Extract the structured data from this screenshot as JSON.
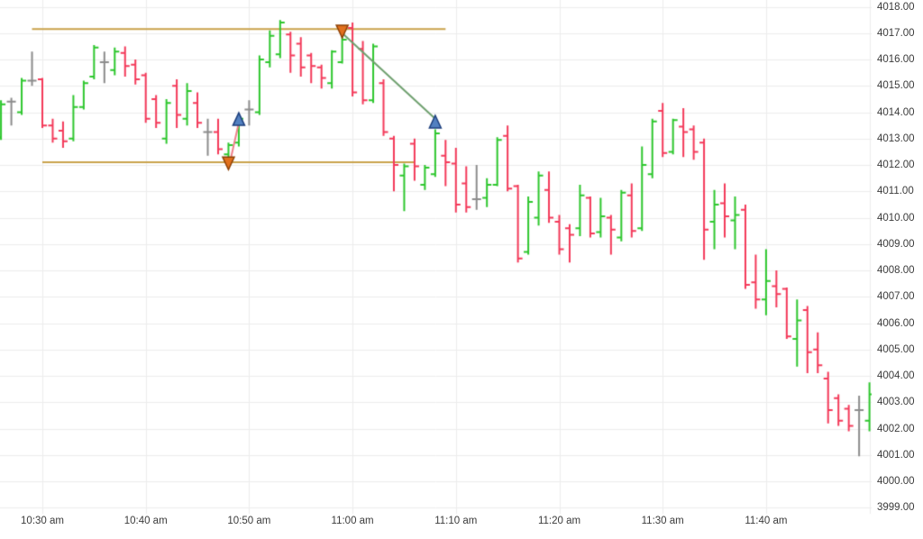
{
  "chart_data": {
    "type": "ohlc",
    "title": "",
    "xlabel": "time",
    "ylabel": "price",
    "ylim": [
      3999,
      4018.6
    ],
    "grid": true,
    "bars": [
      {
        "t": "10:26",
        "o": 4013.05,
        "h": 4014.45,
        "l": 4012.95,
        "c": 4014.3
      },
      {
        "t": "10:27",
        "o": 4014.4,
        "h": 4014.55,
        "l": 4013.5,
        "c": 4014.4
      },
      {
        "t": "10:28",
        "o": 4014.0,
        "h": 4015.3,
        "l": 4013.9,
        "c": 4015.2
      },
      {
        "t": "10:29",
        "o": 4015.2,
        "h": 4016.3,
        "l": 4015.0,
        "c": 4015.2
      },
      {
        "t": "10:30",
        "o": 4015.25,
        "h": 4015.3,
        "l": 4013.4,
        "c": 4013.5
      },
      {
        "t": "10:31",
        "o": 4013.5,
        "h": 4013.75,
        "l": 4012.85,
        "c": 4013.0
      },
      {
        "t": "10:32",
        "o": 4013.3,
        "h": 4013.65,
        "l": 4012.65,
        "c": 4012.9
      },
      {
        "t": "10:33",
        "o": 4013.0,
        "h": 4014.65,
        "l": 4012.9,
        "c": 4014.2
      },
      {
        "t": "10:34",
        "o": 4014.2,
        "h": 4015.2,
        "l": 4014.1,
        "c": 4015.1
      },
      {
        "t": "10:35",
        "o": 4015.35,
        "h": 4016.55,
        "l": 4015.25,
        "c": 4016.45
      },
      {
        "t": "10:36",
        "o": 4015.9,
        "h": 4016.3,
        "l": 4015.1,
        "c": 4015.9
      },
      {
        "t": "10:37",
        "o": 4015.6,
        "h": 4016.45,
        "l": 4015.4,
        "c": 4016.3
      },
      {
        "t": "10:38",
        "o": 4016.25,
        "h": 4016.5,
        "l": 4015.35,
        "c": 4015.75
      },
      {
        "t": "10:39",
        "o": 4015.8,
        "h": 4016.0,
        "l": 4015.05,
        "c": 4015.25
      },
      {
        "t": "10:40",
        "o": 4015.4,
        "h": 4015.5,
        "l": 4013.6,
        "c": 4013.75
      },
      {
        "t": "10:41",
        "o": 4014.5,
        "h": 4014.65,
        "l": 4013.4,
        "c": 4013.6
      },
      {
        "t": "10:42",
        "o": 4013.0,
        "h": 4014.5,
        "l": 4012.8,
        "c": 4014.35
      },
      {
        "t": "10:43",
        "o": 4015.0,
        "h": 4015.25,
        "l": 4013.4,
        "c": 4013.9
      },
      {
        "t": "10:44",
        "o": 4013.75,
        "h": 4015.1,
        "l": 4013.5,
        "c": 4014.8
      },
      {
        "t": "10:45",
        "o": 4014.35,
        "h": 4014.75,
        "l": 4013.4,
        "c": 4013.6
      },
      {
        "t": "10:46",
        "o": 4013.25,
        "h": 4013.75,
        "l": 4012.35,
        "c": 4013.25
      },
      {
        "t": "10:47",
        "o": 4013.25,
        "h": 4013.75,
        "l": 4012.4,
        "c": 4012.6
      },
      {
        "t": "10:48",
        "o": 4012.4,
        "h": 4012.85,
        "l": 4012.2,
        "c": 4012.75
      },
      {
        "t": "10:49",
        "o": 4012.85,
        "h": 4013.9,
        "l": 4012.7,
        "c": 4013.75
      },
      {
        "t": "10:50",
        "o": 4014.1,
        "h": 4014.45,
        "l": 4013.5,
        "c": 4014.1
      },
      {
        "t": "10:51",
        "o": 4014.0,
        "h": 4016.15,
        "l": 4013.9,
        "c": 4016.0
      },
      {
        "t": "10:52",
        "o": 4015.9,
        "h": 4017.1,
        "l": 4015.7,
        "c": 4016.9
      },
      {
        "t": "10:53",
        "o": 4016.2,
        "h": 4017.5,
        "l": 4016.05,
        "c": 4017.4
      },
      {
        "t": "10:54",
        "o": 4016.95,
        "h": 4017.05,
        "l": 4015.5,
        "c": 4016.15
      },
      {
        "t": "10:55",
        "o": 4016.6,
        "h": 4016.85,
        "l": 4015.35,
        "c": 4015.7
      },
      {
        "t": "10:56",
        "o": 4016.15,
        "h": 4016.25,
        "l": 4015.1,
        "c": 4015.75
      },
      {
        "t": "10:57",
        "o": 4015.7,
        "h": 4015.8,
        "l": 4014.9,
        "c": 4015.3
      },
      {
        "t": "10:58",
        "o": 4015.1,
        "h": 4016.35,
        "l": 4014.9,
        "c": 4016.3
      },
      {
        "t": "10:59",
        "o": 4015.9,
        "h": 4016.9,
        "l": 4015.85,
        "c": 4016.75
      },
      {
        "t": "11:00",
        "o": 4017.2,
        "h": 4017.4,
        "l": 4014.6,
        "c": 4014.75
      },
      {
        "t": "11:01",
        "o": 4016.4,
        "h": 4016.7,
        "l": 4014.3,
        "c": 4014.45
      },
      {
        "t": "11:02",
        "o": 4014.45,
        "h": 4016.6,
        "l": 4014.35,
        "c": 4016.5
      },
      {
        "t": "11:03",
        "o": 4015.1,
        "h": 4015.25,
        "l": 4013.1,
        "c": 4013.25
      },
      {
        "t": "11:04",
        "o": 4013.0,
        "h": 4013.1,
        "l": 4011.0,
        "c": 4012.0
      },
      {
        "t": "11:05",
        "o": 4011.6,
        "h": 4012.05,
        "l": 4010.25,
        "c": 4011.95
      },
      {
        "t": "11:06",
        "o": 4012.8,
        "h": 4013.0,
        "l": 4011.4,
        "c": 4011.95
      },
      {
        "t": "11:07",
        "o": 4011.25,
        "h": 4012.0,
        "l": 4011.05,
        "c": 4011.9
      },
      {
        "t": "11:08",
        "o": 4011.65,
        "h": 4013.35,
        "l": 4011.55,
        "c": 4013.2
      },
      {
        "t": "11:09",
        "o": 4012.35,
        "h": 4012.95,
        "l": 4011.2,
        "c": 4012.1
      },
      {
        "t": "11:10",
        "o": 4012.05,
        "h": 4012.65,
        "l": 4010.2,
        "c": 4010.5
      },
      {
        "t": "11:11",
        "o": 4011.3,
        "h": 4011.95,
        "l": 4010.2,
        "c": 4010.4
      },
      {
        "t": "11:12",
        "o": 4010.7,
        "h": 4012.0,
        "l": 4010.3,
        "c": 4010.7
      },
      {
        "t": "11:13",
        "o": 4010.75,
        "h": 4011.5,
        "l": 4010.4,
        "c": 4011.25
      },
      {
        "t": "11:14",
        "o": 4011.25,
        "h": 4013.05,
        "l": 4011.2,
        "c": 4012.95
      },
      {
        "t": "11:15",
        "o": 4013.1,
        "h": 4013.5,
        "l": 4011.0,
        "c": 4011.1
      },
      {
        "t": "11:16",
        "o": 4011.2,
        "h": 4011.25,
        "l": 4008.3,
        "c": 4008.45
      },
      {
        "t": "11:17",
        "o": 4008.7,
        "h": 4010.8,
        "l": 4008.6,
        "c": 4010.6
      },
      {
        "t": "11:18",
        "o": 4010.0,
        "h": 4011.75,
        "l": 4009.7,
        "c": 4011.6
      },
      {
        "t": "11:19",
        "o": 4011.05,
        "h": 4011.75,
        "l": 4009.8,
        "c": 4010.0
      },
      {
        "t": "11:20",
        "o": 4009.85,
        "h": 4010.1,
        "l": 4008.6,
        "c": 4008.8
      },
      {
        "t": "11:21",
        "o": 4009.6,
        "h": 4009.75,
        "l": 4008.3,
        "c": 4009.35
      },
      {
        "t": "11:22",
        "o": 4009.6,
        "h": 4011.25,
        "l": 4009.3,
        "c": 4010.85
      },
      {
        "t": "11:23",
        "o": 4010.75,
        "h": 4010.8,
        "l": 4009.25,
        "c": 4009.4
      },
      {
        "t": "11:24",
        "o": 4009.45,
        "h": 4010.75,
        "l": 4009.25,
        "c": 4010.05
      },
      {
        "t": "11:25",
        "o": 4010.0,
        "h": 4010.1,
        "l": 4008.6,
        "c": 4009.55
      },
      {
        "t": "11:26",
        "o": 4009.25,
        "h": 4011.05,
        "l": 4009.1,
        "c": 4010.95
      },
      {
        "t": "11:27",
        "o": 4010.85,
        "h": 4011.3,
        "l": 4009.25,
        "c": 4009.5
      },
      {
        "t": "11:28",
        "o": 4009.6,
        "h": 4012.7,
        "l": 4009.5,
        "c": 4012.0
      },
      {
        "t": "11:29",
        "o": 4011.65,
        "h": 4013.75,
        "l": 4011.5,
        "c": 4013.65
      },
      {
        "t": "11:30",
        "o": 4014.05,
        "h": 4014.35,
        "l": 4012.3,
        "c": 4012.45
      },
      {
        "t": "11:31",
        "o": 4012.5,
        "h": 4013.75,
        "l": 4012.4,
        "c": 4013.7
      },
      {
        "t": "11:32",
        "o": 4013.45,
        "h": 4014.15,
        "l": 4012.3,
        "c": 4013.25
      },
      {
        "t": "11:33",
        "o": 4013.35,
        "h": 4013.5,
        "l": 4012.2,
        "c": 4012.5
      },
      {
        "t": "11:34",
        "o": 4012.85,
        "h": 4013.0,
        "l": 4008.4,
        "c": 4009.55
      },
      {
        "t": "11:35",
        "o": 4009.85,
        "h": 4011.05,
        "l": 4008.8,
        "c": 4010.5
      },
      {
        "t": "11:36",
        "o": 4010.55,
        "h": 4011.3,
        "l": 4009.25,
        "c": 4010.05
      },
      {
        "t": "11:37",
        "o": 4009.9,
        "h": 4010.8,
        "l": 4008.8,
        "c": 4010.1
      },
      {
        "t": "11:38",
        "o": 4010.3,
        "h": 4010.5,
        "l": 4007.3,
        "c": 4007.45
      },
      {
        "t": "11:39",
        "o": 4007.55,
        "h": 4008.6,
        "l": 4006.55,
        "c": 4006.9
      },
      {
        "t": "11:40",
        "o": 4006.9,
        "h": 4008.8,
        "l": 4006.3,
        "c": 4007.6
      },
      {
        "t": "11:41",
        "o": 4007.4,
        "h": 4008.0,
        "l": 4006.6,
        "c": 4007.1
      },
      {
        "t": "11:42",
        "o": 4007.3,
        "h": 4007.35,
        "l": 4005.4,
        "c": 4005.5
      },
      {
        "t": "11:43",
        "o": 4005.4,
        "h": 4006.9,
        "l": 4004.35,
        "c": 4006.1
      },
      {
        "t": "11:44",
        "o": 4006.5,
        "h": 4006.65,
        "l": 4004.1,
        "c": 4004.9
      },
      {
        "t": "11:45",
        "o": 4005.0,
        "h": 4005.65,
        "l": 4004.1,
        "c": 4004.4
      },
      {
        "t": "11:46",
        "o": 4003.9,
        "h": 4004.15,
        "l": 4002.2,
        "c": 4002.7
      },
      {
        "t": "11:47",
        "o": 4003.15,
        "h": 4003.3,
        "l": 4002.1,
        "c": 4002.3
      },
      {
        "t": "11:48",
        "o": 4002.75,
        "h": 4002.9,
        "l": 4001.9,
        "c": 4002.1
      },
      {
        "t": "11:49",
        "o": 4002.7,
        "h": 4003.25,
        "l": 4000.95,
        "c": 4002.7
      },
      {
        "t": "11:50",
        "o": 4002.3,
        "h": 4003.75,
        "l": 4001.9,
        "c": 4003.3
      }
    ],
    "levels": [
      {
        "name": "resistance-line",
        "price": 4017.15,
        "from": "10:29",
        "to": "11:09"
      },
      {
        "name": "support-line",
        "price": 4012.1,
        "from": "10:30",
        "to": "11:06"
      }
    ],
    "markers": [
      {
        "name": "sell-arrow-1",
        "type": "down",
        "t": "10:48",
        "price": 4012.3
      },
      {
        "name": "buy-arrow-1",
        "type": "up",
        "t": "10:49",
        "price": 4013.98
      },
      {
        "name": "sell-arrow-2",
        "type": "down",
        "t": "10:59",
        "price": 4017.3
      },
      {
        "name": "buy-arrow-2",
        "type": "up",
        "t": "11:08",
        "price": 4013.88
      }
    ],
    "trade_lines": [
      {
        "name": "losing-trade-line",
        "kind": "loss",
        "t1": "10:48",
        "p1": 4011.85,
        "t2": "10:49",
        "p2": 4013.6
      },
      {
        "name": "winning-trade-line",
        "kind": "profit",
        "t1": "10:59",
        "p1": 4017.0,
        "t2": "11:08",
        "p2": 4013.75
      }
    ],
    "y_axis": {
      "min": 3999,
      "max": 4018,
      "step": 1,
      "labels": [
        "4018.00",
        "4017.00",
        "4016.00",
        "4015.00",
        "4014.00",
        "4013.00",
        "4012.00",
        "4011.00",
        "4010.00",
        "4009.00",
        "4008.00",
        "4007.00",
        "4006.00",
        "4005.00",
        "4004.00",
        "4003.00",
        "4002.00",
        "4001.00",
        "4000.00",
        "3999.00"
      ]
    },
    "x_axis": {
      "labels": [
        {
          "text": "10:30 am",
          "time": "10:30"
        },
        {
          "text": "10:40 am",
          "time": "10:40"
        },
        {
          "text": "10:50 am",
          "time": "10:50"
        },
        {
          "text": "11:00 am",
          "time": "11:00"
        },
        {
          "text": "11:10 am",
          "time": "11:10"
        },
        {
          "text": "11:20 am",
          "time": "11:20"
        },
        {
          "text": "11:30 am",
          "time": "11:30"
        },
        {
          "text": "11:40 am",
          "time": "11:40"
        }
      ],
      "gridline_times": [
        "10:30",
        "10:40",
        "10:50",
        "11:00",
        "11:10",
        "11:20",
        "11:30",
        "11:40",
        "11:50"
      ]
    }
  },
  "style": {
    "background": "#ffffff",
    "up_color": "#2ec72e",
    "down_color": "#f43a5a",
    "neutral_color": "#8c8c8c",
    "grid_color": "#ededed",
    "axis_text_color": "#3b3b3b",
    "level_line_color": "#c9a24b",
    "sell_arrow_fill": "#e2711d",
    "sell_arrow_border": "#8d4004",
    "buy_arrow_fill": "#5381c1",
    "buy_arrow_border": "#1d3f7d",
    "loss_line_color": "#ef7f8a",
    "profit_line_color": "#6fa06f"
  }
}
